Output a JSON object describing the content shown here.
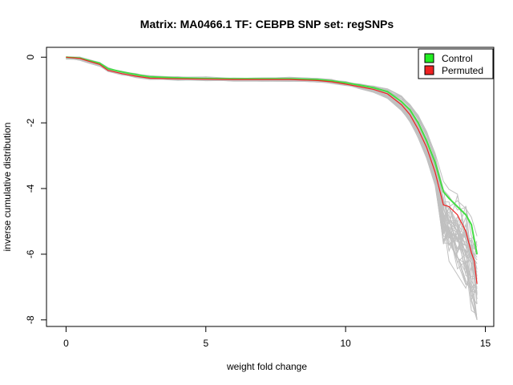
{
  "chart_data": {
    "type": "line",
    "title": "Matrix: MA0466.1 TF: CEBPB SNP set: regSNPs",
    "xlabel": "weight fold change",
    "ylabel": "inverse cumulative distribution",
    "xlim": [
      -0.7,
      15.3
    ],
    "ylim": [
      -8.2,
      0.3
    ],
    "x_ticks": [
      0,
      5,
      10,
      15
    ],
    "y_ticks": [
      0,
      -2,
      -4,
      -6,
      -8
    ],
    "x_tick_labels": [
      "0",
      "5",
      "10",
      "15"
    ],
    "y_tick_labels": [
      "0",
      "-2",
      "-4",
      "-6",
      "-8"
    ],
    "grid": false,
    "legend_position": "top-right",
    "legend": [
      {
        "label": "Control",
        "color": "#22ee22"
      },
      {
        "label": "Permuted",
        "color": "#ee2222"
      }
    ],
    "series": [
      {
        "name": "Control",
        "color": "#44dd44",
        "x": [
          0,
          0.5,
          0.8,
          1.2,
          1.5,
          2.0,
          2.5,
          3.0,
          4.0,
          5.0,
          6.0,
          7.0,
          8.0,
          9.0,
          9.5,
          10.0,
          10.5,
          11.0,
          11.5,
          12.0,
          12.3,
          12.6,
          12.9,
          13.2,
          13.5,
          13.7,
          14.0,
          14.3,
          14.5,
          14.7
        ],
        "y": [
          0,
          -0.03,
          -0.1,
          -0.18,
          -0.35,
          -0.45,
          -0.53,
          -0.6,
          -0.63,
          -0.65,
          -0.66,
          -0.66,
          -0.66,
          -0.68,
          -0.72,
          -0.78,
          -0.85,
          -0.93,
          -1.05,
          -1.35,
          -1.6,
          -2.0,
          -2.55,
          -3.2,
          -4.1,
          -4.3,
          -4.55,
          -4.8,
          -5.1,
          -6.0
        ]
      },
      {
        "name": "Permuted",
        "color": "#ee2222",
        "x": [
          0,
          0.5,
          0.8,
          1.2,
          1.5,
          2.0,
          2.5,
          3.0,
          4.0,
          5.0,
          6.0,
          7.0,
          8.0,
          9.0,
          9.5,
          10.0,
          10.5,
          11.0,
          11.5,
          12.0,
          12.3,
          12.6,
          12.9,
          13.2,
          13.5,
          13.7,
          14.0,
          14.3,
          14.5,
          14.6,
          14.7
        ],
        "y": [
          0,
          -0.04,
          -0.12,
          -0.22,
          -0.4,
          -0.5,
          -0.58,
          -0.64,
          -0.66,
          -0.67,
          -0.68,
          -0.68,
          -0.68,
          -0.71,
          -0.75,
          -0.82,
          -0.9,
          -0.98,
          -1.12,
          -1.45,
          -1.75,
          -2.2,
          -2.75,
          -3.5,
          -4.5,
          -4.55,
          -4.8,
          -5.3,
          -5.95,
          -6.2,
          -6.9
        ]
      }
    ],
    "background_series": {
      "color": "#c0c0c0",
      "count": 40,
      "description_x": [
        0,
        0.5,
        0.8,
        1.2,
        1.5,
        2.0,
        2.5,
        3.0,
        4.0,
        5.0,
        6.0,
        7.0,
        8.0,
        9.0,
        9.5,
        10.0,
        10.5,
        11.0,
        11.5,
        12.0,
        12.3,
        12.6,
        12.9,
        13.2,
        13.5,
        13.7,
        14.0,
        14.3,
        14.5,
        14.7
      ],
      "base_y": [
        0,
        -0.04,
        -0.12,
        -0.22,
        -0.38,
        -0.48,
        -0.56,
        -0.62,
        -0.65,
        -0.66,
        -0.67,
        -0.67,
        -0.67,
        -0.7,
        -0.74,
        -0.8,
        -0.88,
        -0.96,
        -1.1,
        -1.4,
        -1.7,
        -2.1,
        -2.65,
        -3.4,
        -4.3,
        -4.5,
        -4.7,
        -5.0,
        -5.5,
        -6.0
      ],
      "tail_min": -8.0
    }
  }
}
